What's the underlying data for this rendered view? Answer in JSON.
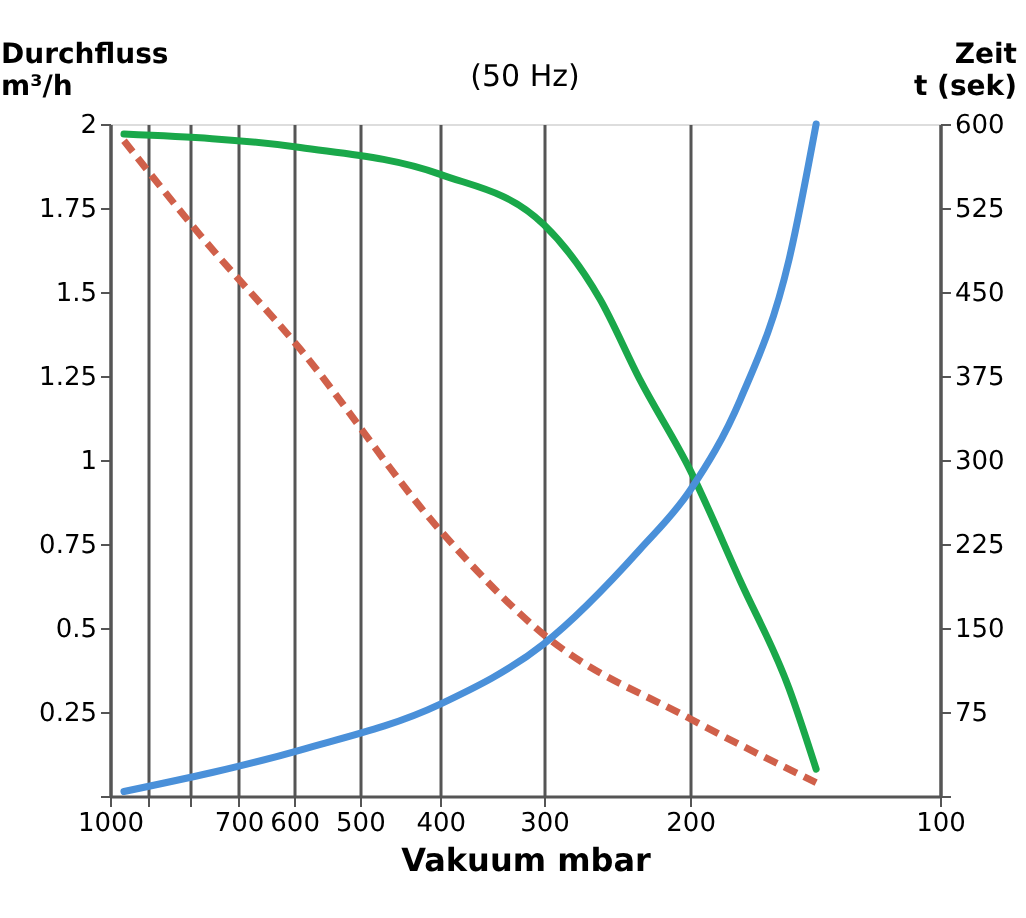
{
  "chart_data": {
    "type": "line",
    "title": "(50 Hz)",
    "xlabel": "Vakuum mbar",
    "ylabel": "Durchfluss\nm³/h",
    "y2label": "Zeit\nt (sek)",
    "log": "x",
    "xlim": [
      1000,
      100
    ],
    "xticks": [
      1000,
      {
        "value": 900,
        "label": null
      },
      {
        "value": 800,
        "label": null
      },
      700,
      600,
      500,
      400,
      300,
      200,
      100
    ],
    "ylim": [
      0,
      2
    ],
    "yticks": [
      {
        "value": 0,
        "label": null
      },
      0.25,
      0.5,
      0.75,
      1,
      1.25,
      1.5,
      1.75,
      2
    ],
    "y2lim": [
      0,
      600
    ],
    "y2ticks": [
      {
        "value": 0,
        "label": null
      },
      75,
      150,
      225,
      300,
      375,
      450,
      525,
      600
    ],
    "grid": "x",
    "series": [
      {
        "color": "#1aa84a",
        "line_style": "solid",
        "x": [
          962,
          590,
          400,
          300,
          257,
          230,
          200,
          174,
          152,
          141
        ],
        "values": [
          1.97,
          1.93,
          1.85,
          1.7,
          1.48,
          1.24,
          0.97,
          0.64,
          0.32,
          0.08
        ]
      },
      {
        "color": "#d0604a",
        "line_style": "dashed",
        "x": [
          962,
          779,
          590,
          400,
          300,
          200,
          141
        ],
        "values": [
          1.95,
          1.67,
          1.33,
          0.79,
          0.48,
          0.23,
          0.04
        ]
      },
      {
        "color": "#4a90d9",
        "line_style": "solid",
        "axis": "y2",
        "x": [
          962,
          590,
          400,
          300,
          230,
          200,
          174,
          152,
          141
        ],
        "values": [
          4,
          41,
          82,
          136,
          220,
          273,
          354,
          479,
          600
        ]
      }
    ]
  }
}
